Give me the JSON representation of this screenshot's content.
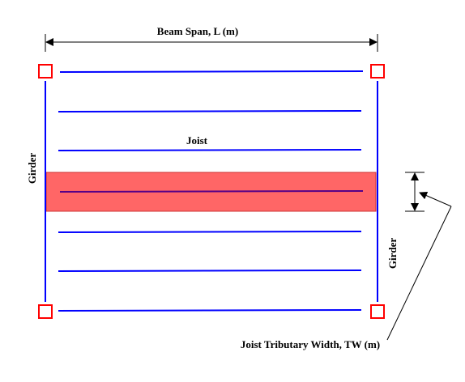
{
  "labels": {
    "beam_span": "Beam Span, L (m)",
    "joist": "Joist",
    "girder_left": "Girder",
    "girder_right": "Girder",
    "tributary_width": "Joist Tributary Width, TW (m)"
  },
  "colors": {
    "beam_line": "#0000ff",
    "column": "#ff0000",
    "tributary_fill": "#ff6666",
    "tributary_joist": "#550088",
    "dimension": "#000000"
  }
}
